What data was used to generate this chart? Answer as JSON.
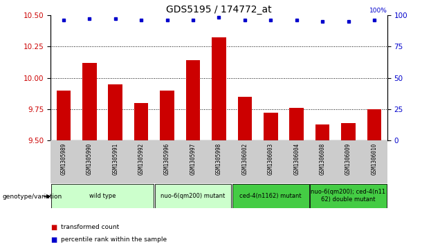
{
  "title": "GDS5195 / 174772_at",
  "samples": [
    "GSM1305989",
    "GSM1305990",
    "GSM1305991",
    "GSM1305992",
    "GSM1305996",
    "GSM1305997",
    "GSM1305998",
    "GSM1306002",
    "GSM1306003",
    "GSM1306004",
    "GSM1306008",
    "GSM1306009",
    "GSM1306010"
  ],
  "bar_values": [
    9.9,
    10.12,
    9.95,
    9.8,
    9.9,
    10.14,
    10.32,
    9.85,
    9.72,
    9.76,
    9.63,
    9.64,
    9.75
  ],
  "percentile_values": [
    96,
    97,
    97,
    96,
    96,
    96,
    98,
    96,
    96,
    96,
    95,
    95,
    96
  ],
  "bar_color": "#cc0000",
  "dot_color": "#0000cc",
  "ylim_left": [
    9.5,
    10.5
  ],
  "ylim_right": [
    0,
    100
  ],
  "yticks_left": [
    9.5,
    9.75,
    10.0,
    10.25,
    10.5
  ],
  "yticks_right": [
    0,
    25,
    50,
    75,
    100
  ],
  "grid_lines": [
    9.75,
    10.0,
    10.25
  ],
  "groups": [
    {
      "label": "wild type",
      "start": 0,
      "end": 3,
      "color": "#ccffcc"
    },
    {
      "label": "nuo-6(qm200) mutant",
      "start": 4,
      "end": 6,
      "color": "#ccffcc"
    },
    {
      "label": "ced-4(n1162) mutant",
      "start": 7,
      "end": 9,
      "color": "#44cc44"
    },
    {
      "label": "nuo-6(qm200); ced-4(n11\n62) double mutant",
      "start": 10,
      "end": 12,
      "color": "#44cc44"
    }
  ],
  "xlabel_bottom": "genotype/variation",
  "legend_transformed": "transformed count",
  "legend_percentile": "percentile rank within the sample",
  "bar_width": 0.55,
  "background_color": "#ffffff",
  "plot_bg": "#ffffff",
  "tick_label_color_left": "#cc0000",
  "tick_label_color_right": "#0000cc",
  "title_fontsize": 10,
  "tick_fontsize": 7.5,
  "label_fontsize": 7
}
